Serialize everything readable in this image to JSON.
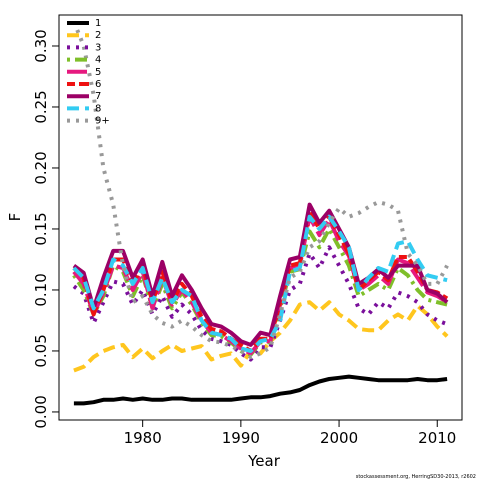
{
  "chart_data": {
    "type": "line",
    "x_label": "Year",
    "y_label": "F",
    "footnote": "stockassessment.org, HerringSD30-2013, r2602",
    "x": [
      1973,
      1974,
      1975,
      1976,
      1977,
      1978,
      1979,
      1980,
      1981,
      1982,
      1983,
      1984,
      1985,
      1986,
      1987,
      1988,
      1989,
      1990,
      1991,
      1992,
      1993,
      1994,
      1995,
      1996,
      1997,
      1998,
      1999,
      2000,
      2001,
      2002,
      2003,
      2004,
      2005,
      2006,
      2007,
      2008,
      2009,
      2010,
      2011
    ],
    "xlim": [
      1971.48,
      2012.52
    ],
    "xticks": [
      1980,
      1990,
      2000,
      2010
    ],
    "ylim": [
      -0.0066,
      0.3254
    ],
    "yticks": [
      {
        "value": 0,
        "label": "0.00"
      },
      0.05,
      {
        "value": 0.1,
        "label": "0.10"
      },
      0.15,
      {
        "value": 0.2,
        "label": "0.20"
      },
      0.25,
      {
        "value": 0.3,
        "label": "0.30"
      }
    ],
    "legend": "top-left",
    "series": [
      {
        "name": "1",
        "color": "#000000",
        "dash": "solid",
        "values": [
          0.007,
          0.007,
          0.008,
          0.01,
          0.01,
          0.011,
          0.01,
          0.011,
          0.01,
          0.01,
          0.011,
          0.011,
          0.01,
          0.01,
          0.01,
          0.01,
          0.01,
          0.011,
          0.012,
          0.012,
          0.013,
          0.015,
          0.016,
          0.018,
          0.022,
          0.025,
          0.027,
          0.028,
          0.029,
          0.028,
          0.027,
          0.026,
          0.026,
          0.026,
          0.026,
          0.027,
          0.026,
          0.026,
          0.027
        ]
      },
      {
        "name": "2",
        "color": "#ffc61e",
        "dash": "dashed",
        "values": [
          0.034,
          0.037,
          0.045,
          0.05,
          0.053,
          0.055,
          0.045,
          0.052,
          0.044,
          0.05,
          0.055,
          0.05,
          0.052,
          0.054,
          0.043,
          0.046,
          0.048,
          0.038,
          0.05,
          0.048,
          0.058,
          0.065,
          0.075,
          0.088,
          0.09,
          0.083,
          0.09,
          0.08,
          0.075,
          0.068,
          0.067,
          0.067,
          0.075,
          0.08,
          0.075,
          0.087,
          0.08,
          0.07,
          0.062
        ]
      },
      {
        "name": "3",
        "color": "#7a0f9b",
        "dash": "dotted",
        "values": [
          0.103,
          0.097,
          0.073,
          0.09,
          0.107,
          0.105,
          0.088,
          0.1,
          0.08,
          0.095,
          0.078,
          0.088,
          0.08,
          0.067,
          0.06,
          0.058,
          0.055,
          0.048,
          0.043,
          0.053,
          0.053,
          0.075,
          0.1,
          0.105,
          0.13,
          0.118,
          0.135,
          0.12,
          0.105,
          0.085,
          0.08,
          0.09,
          0.085,
          0.098,
          0.095,
          0.09,
          0.08,
          0.075,
          0.072
        ]
      },
      {
        "name": "4",
        "color": "#7fbf2a",
        "dash": "dotdash",
        "values": [
          0.112,
          0.1,
          0.08,
          0.095,
          0.12,
          0.115,
          0.095,
          0.112,
          0.085,
          0.105,
          0.085,
          0.098,
          0.088,
          0.073,
          0.063,
          0.062,
          0.057,
          0.05,
          0.047,
          0.057,
          0.057,
          0.085,
          0.115,
          0.117,
          0.148,
          0.135,
          0.15,
          0.135,
          0.12,
          0.095,
          0.1,
          0.105,
          0.1,
          0.118,
          0.112,
          0.1,
          0.092,
          0.09,
          0.088
        ]
      },
      {
        "name": "5",
        "color": "#e6197f",
        "dash": "longdash",
        "values": [
          0.115,
          0.105,
          0.08,
          0.098,
          0.12,
          0.118,
          0.1,
          0.115,
          0.085,
          0.11,
          0.088,
          0.1,
          0.09,
          0.075,
          0.065,
          0.063,
          0.058,
          0.052,
          0.048,
          0.058,
          0.058,
          0.088,
          0.118,
          0.12,
          0.16,
          0.145,
          0.158,
          0.14,
          0.128,
          0.1,
          0.105,
          0.112,
          0.105,
          0.125,
          0.122,
          0.11,
          0.098,
          0.095,
          0.09
        ]
      },
      {
        "name": "6",
        "color": "#ee1111",
        "dash": "twodash",
        "values": [
          0.118,
          0.11,
          0.08,
          0.1,
          0.125,
          0.125,
          0.105,
          0.12,
          0.09,
          0.115,
          0.09,
          0.105,
          0.095,
          0.078,
          0.068,
          0.066,
          0.06,
          0.055,
          0.05,
          0.06,
          0.06,
          0.09,
          0.12,
          0.122,
          0.165,
          0.15,
          0.16,
          0.145,
          0.13,
          0.1,
          0.108,
          0.115,
          0.108,
          0.127,
          0.127,
          0.115,
          0.1,
          0.098,
          0.093
        ]
      },
      {
        "name": "7",
        "color": "#9c0066",
        "dash": "solid",
        "values": [
          0.12,
          0.114,
          0.085,
          0.11,
          0.132,
          0.132,
          0.11,
          0.125,
          0.095,
          0.123,
          0.095,
          0.112,
          0.1,
          0.085,
          0.072,
          0.07,
          0.065,
          0.058,
          0.055,
          0.065,
          0.063,
          0.095,
          0.125,
          0.127,
          0.17,
          0.155,
          0.165,
          0.15,
          0.135,
          0.105,
          0.11,
          0.117,
          0.11,
          0.12,
          0.12,
          0.12,
          0.1,
          0.097,
          0.09
        ]
      },
      {
        "name": "8",
        "color": "#33ccf2",
        "dash": "dashed",
        "values": [
          0.118,
          0.11,
          0.085,
          0.1,
          0.125,
          0.12,
          0.105,
          0.118,
          0.09,
          0.11,
          0.09,
          0.1,
          0.095,
          0.075,
          0.065,
          0.063,
          0.06,
          0.052,
          0.05,
          0.058,
          0.06,
          0.075,
          0.115,
          0.118,
          0.16,
          0.15,
          0.16,
          0.148,
          0.135,
          0.1,
          0.11,
          0.118,
          0.115,
          0.138,
          0.14,
          0.125,
          0.112,
          0.11,
          0.108
        ]
      },
      {
        "name": "9+",
        "color": "#999999",
        "dash": "dotted",
        "values": [
          0.32,
          0.3,
          0.26,
          0.2,
          0.17,
          0.12,
          0.09,
          0.095,
          0.08,
          0.073,
          0.07,
          0.075,
          0.07,
          0.063,
          0.058,
          0.057,
          0.054,
          0.05,
          0.045,
          0.048,
          0.053,
          0.08,
          0.11,
          0.115,
          0.135,
          0.14,
          0.155,
          0.167,
          0.16,
          0.163,
          0.168,
          0.172,
          0.17,
          0.165,
          0.13,
          0.12,
          0.105,
          0.105,
          0.12
        ]
      }
    ]
  }
}
